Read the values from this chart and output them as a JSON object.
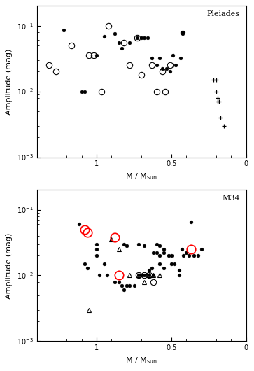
{
  "pleiades": {
    "filled_circles": [
      [
        1.22,
        0.085
      ],
      [
        1.1,
        0.01
      ],
      [
        1.08,
        0.01
      ],
      [
        1.0,
        0.035
      ],
      [
        0.95,
        0.068
      ],
      [
        0.88,
        0.075
      ],
      [
        0.85,
        0.055
      ],
      [
        0.83,
        0.045
      ],
      [
        0.78,
        0.055
      ],
      [
        0.73,
        0.065
      ],
      [
        0.7,
        0.065
      ],
      [
        0.68,
        0.065
      ],
      [
        0.66,
        0.065
      ],
      [
        0.63,
        0.032
      ],
      [
        0.6,
        0.025
      ],
      [
        0.58,
        0.032
      ],
      [
        0.56,
        0.022
      ],
      [
        0.53,
        0.022
      ],
      [
        0.51,
        0.02
      ],
      [
        0.49,
        0.035
      ],
      [
        0.47,
        0.025
      ],
      [
        0.44,
        0.032
      ],
      [
        0.43,
        0.08
      ],
      [
        0.43,
        0.078
      ],
      [
        0.425,
        0.075
      ],
      [
        0.42,
        0.08
      ]
    ],
    "open_circles": [
      [
        1.32,
        0.025
      ],
      [
        1.27,
        0.02
      ],
      [
        1.17,
        0.05
      ],
      [
        1.05,
        0.035
      ],
      [
        1.02,
        0.035
      ],
      [
        0.97,
        0.01
      ],
      [
        0.92,
        0.1
      ],
      [
        0.82,
        0.055
      ],
      [
        0.78,
        0.025
      ],
      [
        0.73,
        0.065
      ],
      [
        0.7,
        0.018
      ],
      [
        0.63,
        0.025
      ],
      [
        0.6,
        0.01
      ],
      [
        0.56,
        0.02
      ],
      [
        0.54,
        0.01
      ],
      [
        0.51,
        0.025
      ]
    ],
    "crosses": [
      [
        0.22,
        0.015
      ],
      [
        0.2,
        0.015
      ],
      [
        0.2,
        0.01
      ],
      [
        0.19,
        0.008
      ],
      [
        0.19,
        0.007
      ],
      [
        0.18,
        0.007
      ],
      [
        0.17,
        0.004
      ],
      [
        0.15,
        0.003
      ]
    ]
  },
  "m34": {
    "filled_circles": [
      [
        1.12,
        0.06
      ],
      [
        1.08,
        0.015
      ],
      [
        1.06,
        0.013
      ],
      [
        1.0,
        0.03
      ],
      [
        1.0,
        0.025
      ],
      [
        1.0,
        0.02
      ],
      [
        0.98,
        0.01
      ],
      [
        0.95,
        0.015
      ],
      [
        0.93,
        0.01
      ],
      [
        0.88,
        0.008
      ],
      [
        0.85,
        0.008
      ],
      [
        0.83,
        0.007
      ],
      [
        0.82,
        0.006
      ],
      [
        0.8,
        0.007
      ],
      [
        0.78,
        0.007
      ],
      [
        0.75,
        0.007
      ],
      [
        0.72,
        0.01
      ],
      [
        0.7,
        0.01
      ],
      [
        0.68,
        0.01
      ],
      [
        0.65,
        0.012
      ],
      [
        0.65,
        0.01
      ],
      [
        0.63,
        0.013
      ],
      [
        0.62,
        0.01
      ],
      [
        0.62,
        0.022
      ],
      [
        0.6,
        0.022
      ],
      [
        0.58,
        0.02
      ],
      [
        0.58,
        0.015
      ],
      [
        0.55,
        0.025
      ],
      [
        0.55,
        0.022
      ],
      [
        0.55,
        0.013
      ],
      [
        0.52,
        0.02
      ],
      [
        0.5,
        0.02
      ],
      [
        0.5,
        0.015
      ],
      [
        0.48,
        0.015
      ],
      [
        0.45,
        0.01
      ],
      [
        0.45,
        0.012
      ],
      [
        0.43,
        0.025
      ],
      [
        0.42,
        0.02
      ],
      [
        0.4,
        0.022
      ],
      [
        0.38,
        0.02
      ],
      [
        0.37,
        0.065
      ],
      [
        0.35,
        0.02
      ],
      [
        0.32,
        0.02
      ],
      [
        0.3,
        0.025
      ],
      [
        0.82,
        0.03
      ],
      [
        0.8,
        0.028
      ],
      [
        0.72,
        0.03
      ],
      [
        0.68,
        0.028
      ],
      [
        0.6,
        0.03
      ],
      [
        0.58,
        0.028
      ]
    ],
    "open_circles": [
      [
        0.72,
        0.01
      ],
      [
        0.68,
        0.01
      ],
      [
        0.65,
        0.01
      ],
      [
        0.62,
        0.008
      ]
    ],
    "triangles": [
      [
        1.05,
        0.003
      ],
      [
        0.9,
        0.035
      ],
      [
        0.85,
        0.025
      ],
      [
        0.78,
        0.01
      ],
      [
        0.72,
        0.01
      ],
      [
        0.68,
        0.008
      ],
      [
        0.65,
        0.01
      ],
      [
        0.62,
        0.01
      ],
      [
        0.58,
        0.01
      ]
    ],
    "red_circles": [
      [
        1.08,
        0.05
      ],
      [
        1.06,
        0.045
      ],
      [
        0.88,
        0.038
      ],
      [
        0.85,
        0.01
      ],
      [
        0.37,
        0.025
      ]
    ]
  },
  "xlim": [
    1.4,
    0.0
  ],
  "ylim": [
    0.001,
    0.2
  ],
  "xlabel": "M / M$_\\mathregular{sun}$",
  "ylabel": "Amplitude (mag)",
  "label_pleiades": "Pleiades",
  "label_m34": "M34"
}
